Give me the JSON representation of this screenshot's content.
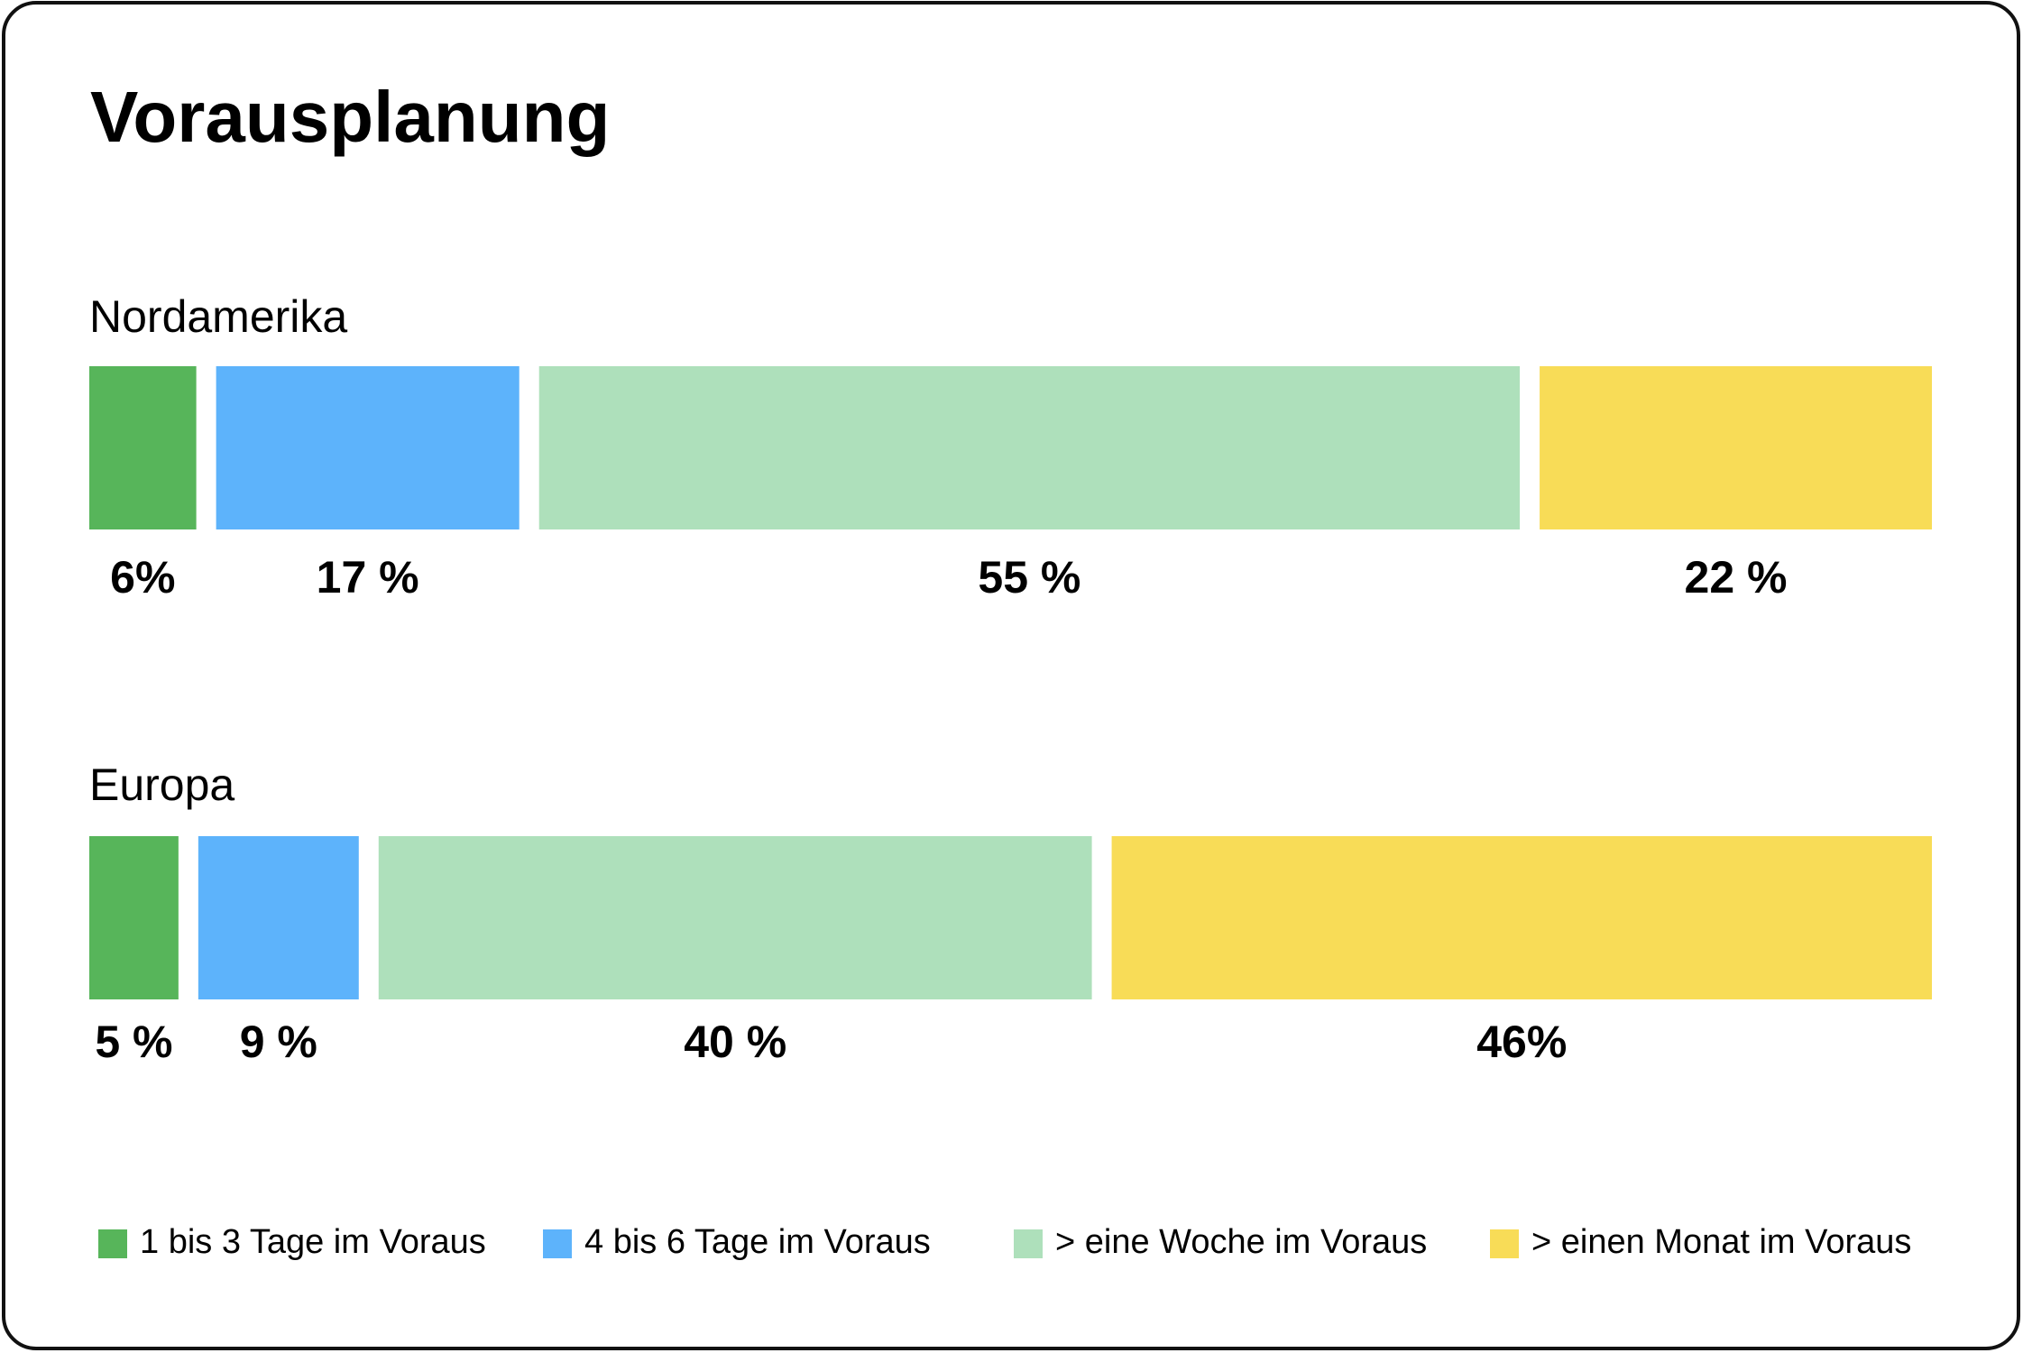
{
  "chart_data": {
    "type": "bar",
    "orientation": "horizontal",
    "stacked": true,
    "title": "Vorausplanung",
    "categories": [
      "Nordamerika",
      "Europa"
    ],
    "series": [
      {
        "name": "1 bis 3 Tage im Voraus",
        "color": "#57b55a",
        "values": [
          6,
          5
        ],
        "value_labels": [
          "6%",
          "5 %"
        ]
      },
      {
        "name": "4 bis 6 Tage im Voraus",
        "color": "#5db3fb",
        "values": [
          17,
          9
        ],
        "value_labels": [
          "17 %",
          "9 %"
        ]
      },
      {
        "name": "> eine Woche im Voraus",
        "color": "#aee0bb",
        "values": [
          55,
          40
        ],
        "value_labels": [
          "55 %",
          "40 %"
        ]
      },
      {
        "name": "> einen Monat im Voraus",
        "color": "#f8dc57",
        "values": [
          22,
          46
        ],
        "value_labels": [
          "22 %",
          "46%"
        ]
      }
    ]
  }
}
